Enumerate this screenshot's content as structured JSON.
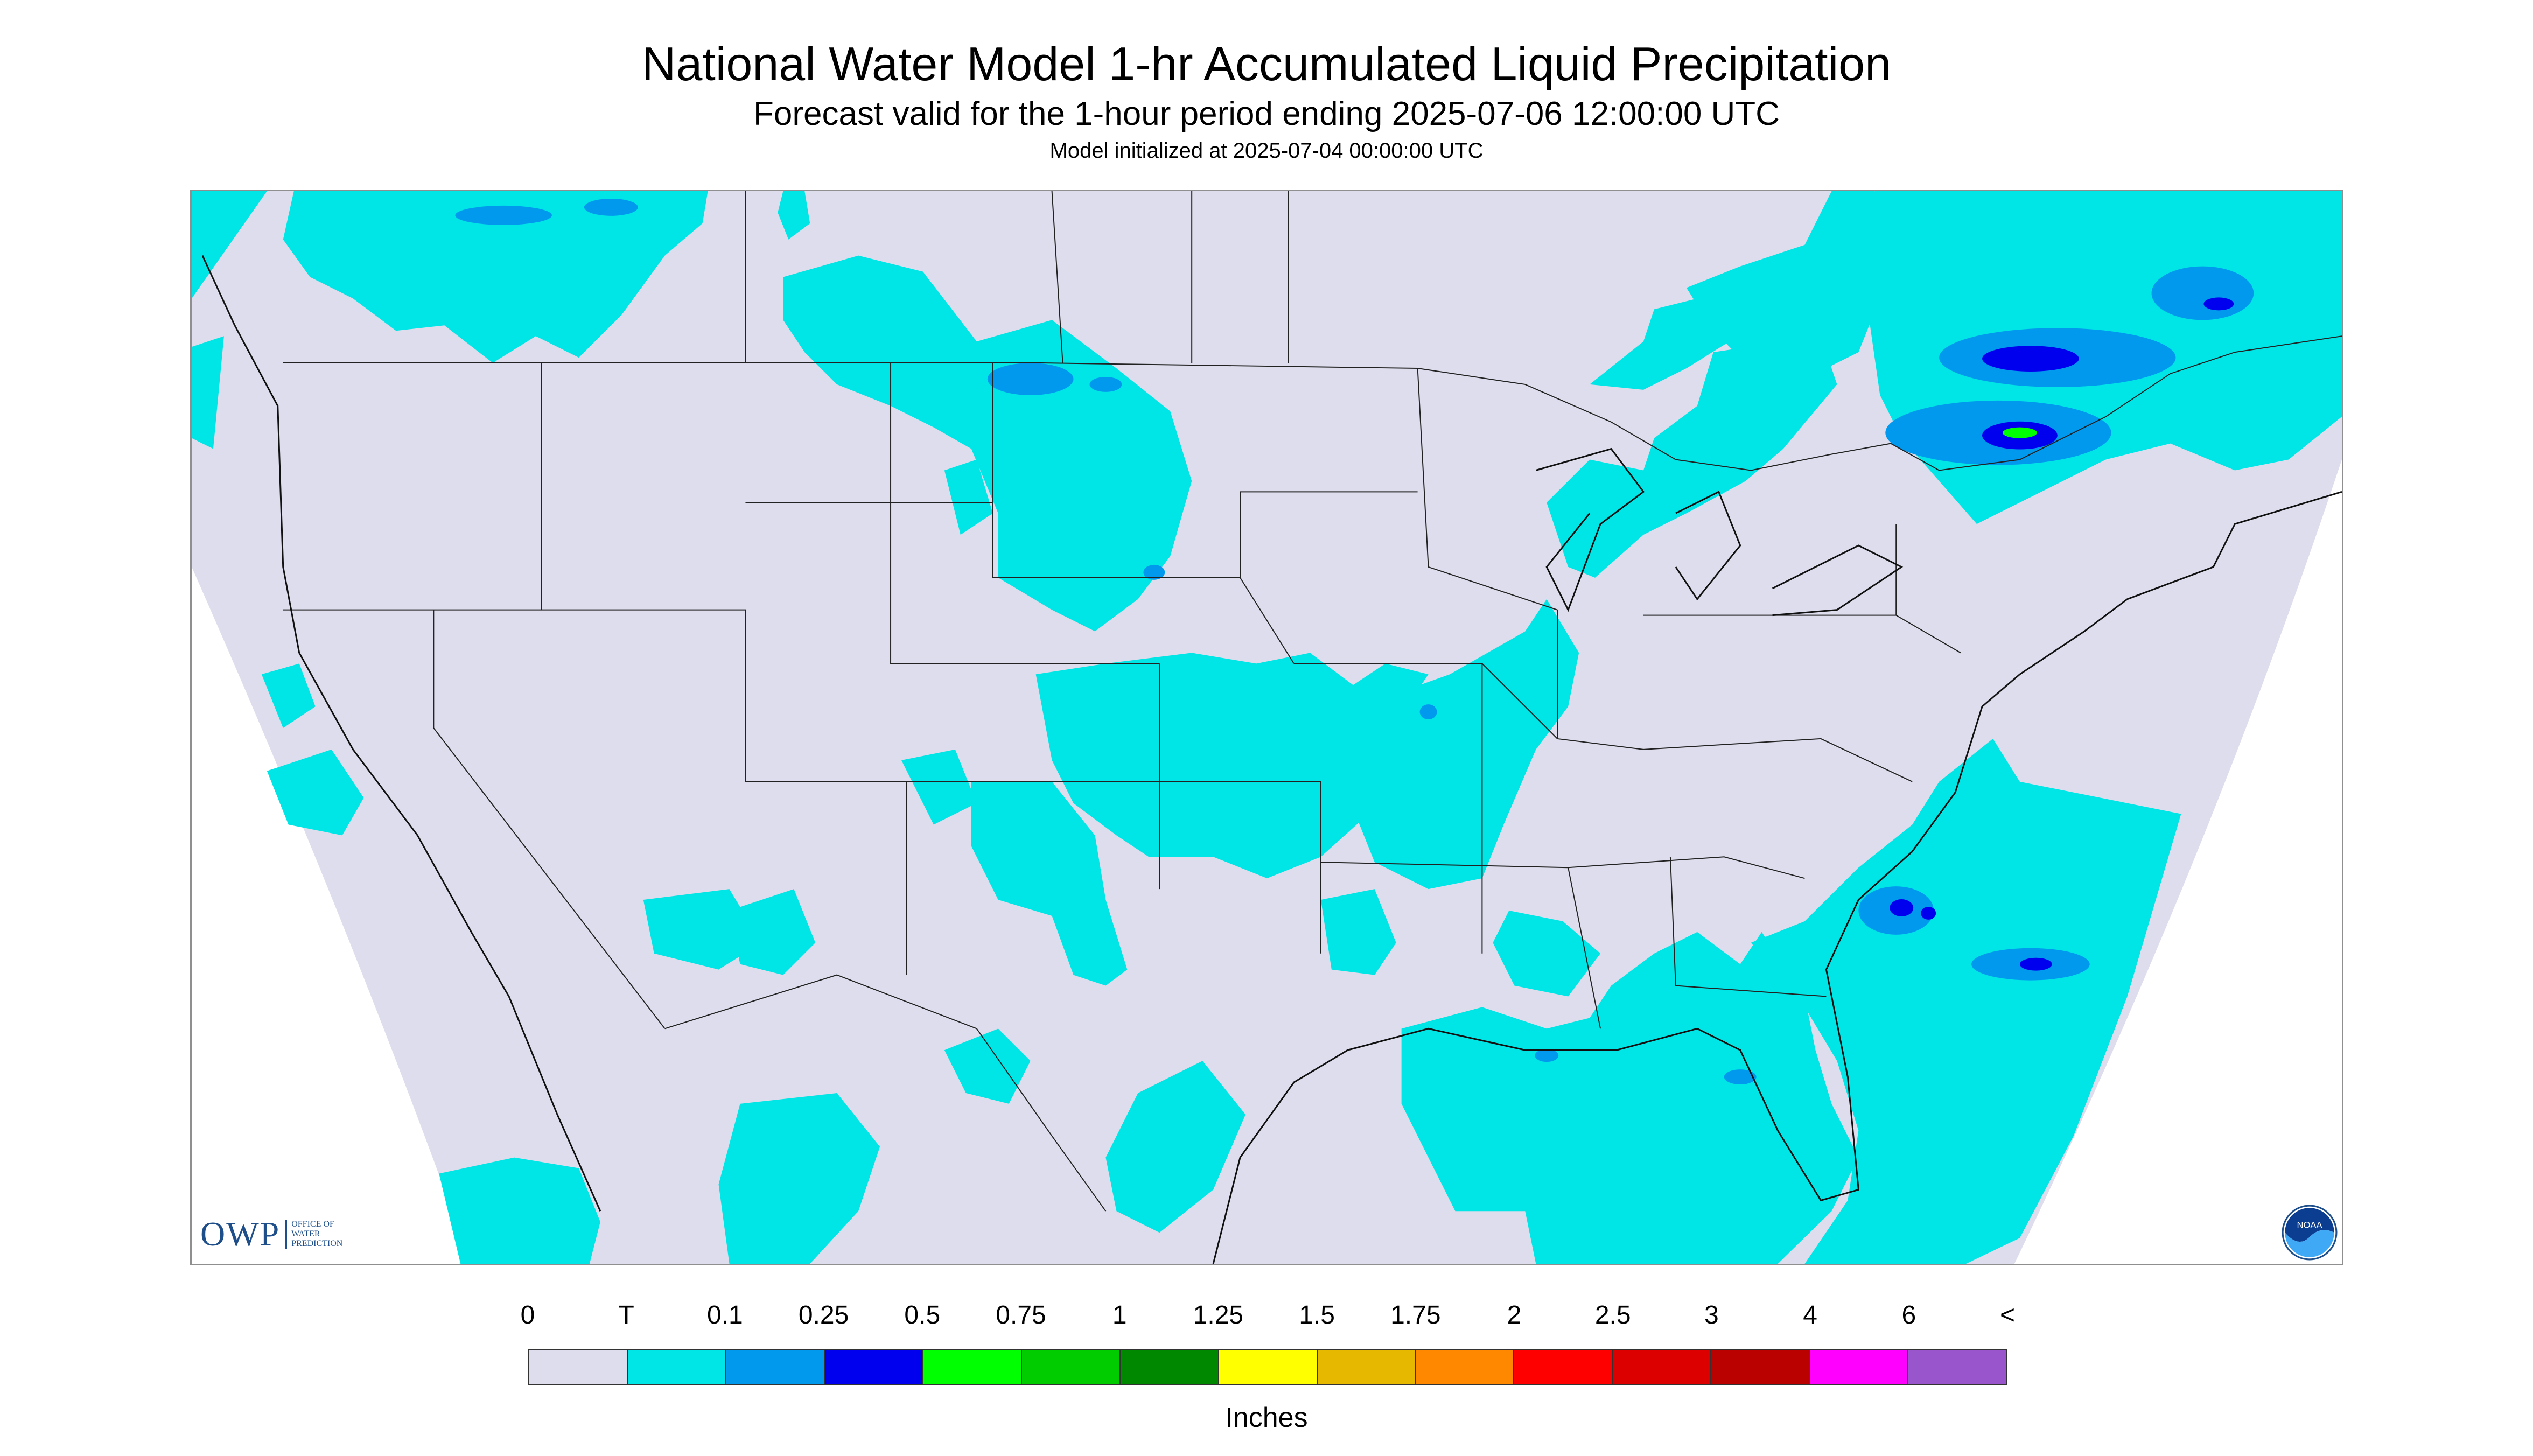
{
  "header": {
    "title": "National Water Model 1-hr Accumulated Liquid Precipitation",
    "subtitle": "Forecast valid for the 1-hour period ending 2025-07-06 12:00:00 UTC",
    "init": "Model initialized at 2025-07-04 00:00:00 UTC"
  },
  "map": {
    "background_color": "#dddded",
    "precip_colors": {
      "trace": "#00e5e5",
      "light": "#0099ee",
      "medium": "#0000ee",
      "heavy": "#00ff00"
    },
    "boundary_color": "#222222"
  },
  "logos": {
    "owp": {
      "text": "OWP",
      "sub1": "OFFICE OF",
      "sub2": "WATER",
      "sub3": "PREDICTION"
    },
    "noaa": {
      "text": "NOAA",
      "icon": "noaa-logo-icon"
    }
  },
  "legend": {
    "labels": [
      "0",
      "T",
      "0.1",
      "0.25",
      "0.5",
      "0.75",
      "1",
      "1.25",
      "1.5",
      "1.75",
      "2",
      "2.5",
      "3",
      "4",
      "6",
      "<"
    ],
    "colors": [
      "#dddded",
      "#00e5e5",
      "#0099ee",
      "#0000ee",
      "#00ff00",
      "#00cc00",
      "#008800",
      "#ffff00",
      "#e6b800",
      "#ff8800",
      "#ff0000",
      "#dd0000",
      "#bb0000",
      "#ff00ff",
      "#9955cc"
    ],
    "units": "Inches"
  }
}
